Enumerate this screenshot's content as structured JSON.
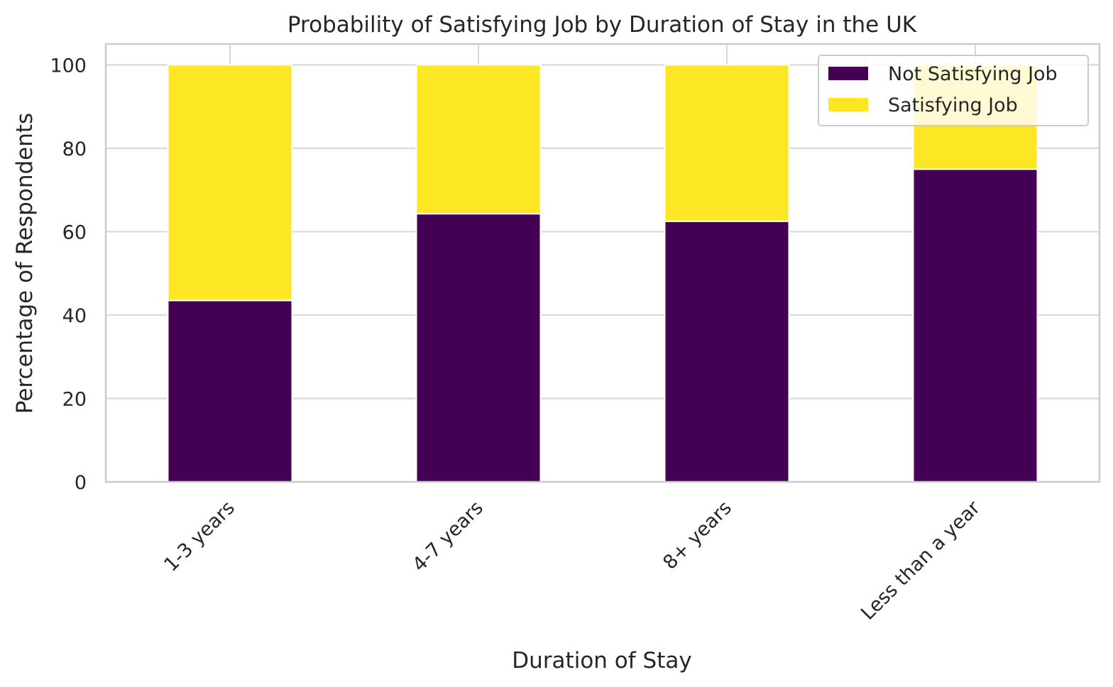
{
  "chart_data": {
    "type": "bar",
    "stacked": true,
    "title": "Probability of Satisfying Job by Duration of Stay in the UK",
    "xlabel": "Duration of Stay",
    "ylabel": "Percentage of Respondents",
    "categories": [
      "1-3 years",
      "4-7 years",
      "8+ years",
      "Less than a year"
    ],
    "series": [
      {
        "name": "Not Satisfying Job",
        "color": "#440154",
        "values": [
          43.5,
          64.3,
          62.5,
          75.0
        ]
      },
      {
        "name": "Satisfying Job",
        "color": "#fde725",
        "values": [
          56.5,
          35.7,
          37.5,
          25.0
        ]
      }
    ],
    "ylim": [
      0,
      105
    ],
    "yticks": [
      0,
      20,
      40,
      60,
      80,
      100
    ],
    "grid": true,
    "legend_position": "top-right",
    "xtick_rotation": 45
  }
}
